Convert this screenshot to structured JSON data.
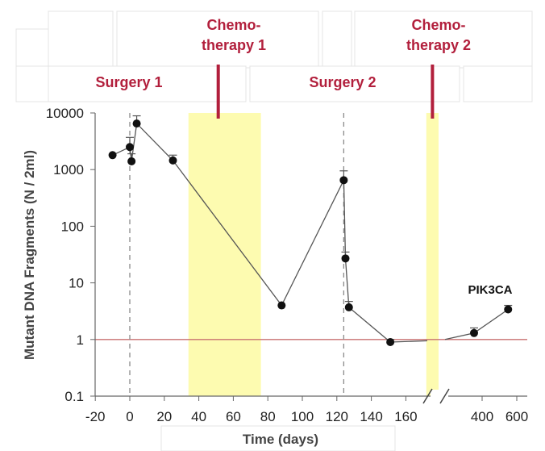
{
  "chart_data": {
    "type": "line",
    "title": "",
    "xlabel": "Time (days)",
    "ylabel": "Mutant DNA Fragments (N / 2ml)",
    "yscale": "log",
    "ylim": [
      0.1,
      10000
    ],
    "ytick_labels": [
      "0.1",
      "1",
      "10",
      "100",
      "1000",
      "10000"
    ],
    "xtick_labels": [
      "-20",
      "0",
      "20",
      "40",
      "60",
      "80",
      "100",
      "120",
      "140",
      "160",
      "400",
      "600"
    ],
    "x_axis_break": "between 170 and 300",
    "series": [
      {
        "name": "PIK3CA",
        "points": [
          {
            "x": -10,
            "y": 1800
          },
          {
            "x": 0,
            "y": 2500
          },
          {
            "x": 1,
            "y": 1400
          },
          {
            "x": 4,
            "y": 6500
          },
          {
            "x": 25,
            "y": 1450
          },
          {
            "x": 88,
            "y": 4
          },
          {
            "x": 124,
            "y": 650
          },
          {
            "x": 125,
            "y": 27
          },
          {
            "x": 127,
            "y": 3.7
          },
          {
            "x": 151,
            "y": 0.9
          },
          {
            "x": 380,
            "y": 1.3
          },
          {
            "x": 550,
            "y": 3.4
          }
        ],
        "error_up": [
          0,
          1200,
          500,
          2400,
          350,
          0,
          300,
          8,
          1,
          0.1,
          0.3,
          0.6
        ],
        "color": "#555555"
      }
    ],
    "threshold_line": {
      "y": 1,
      "color": "#c87070"
    },
    "events": [
      {
        "label": "Surgery 1",
        "x": 0
      },
      {
        "label": "Surgery 2",
        "x": 124
      }
    ],
    "therapies": [
      {
        "label_line1": "Chemo-",
        "label_line2": "therapy 1",
        "x_start": 34,
        "x_end": 76
      },
      {
        "label_line1": "Chemo-",
        "label_line2": "therapy 2",
        "x_start": 170,
        "x_end": 300
      }
    ],
    "shade_color": "#fdfbb0",
    "event_color": "#b21f3c",
    "grid": false
  }
}
